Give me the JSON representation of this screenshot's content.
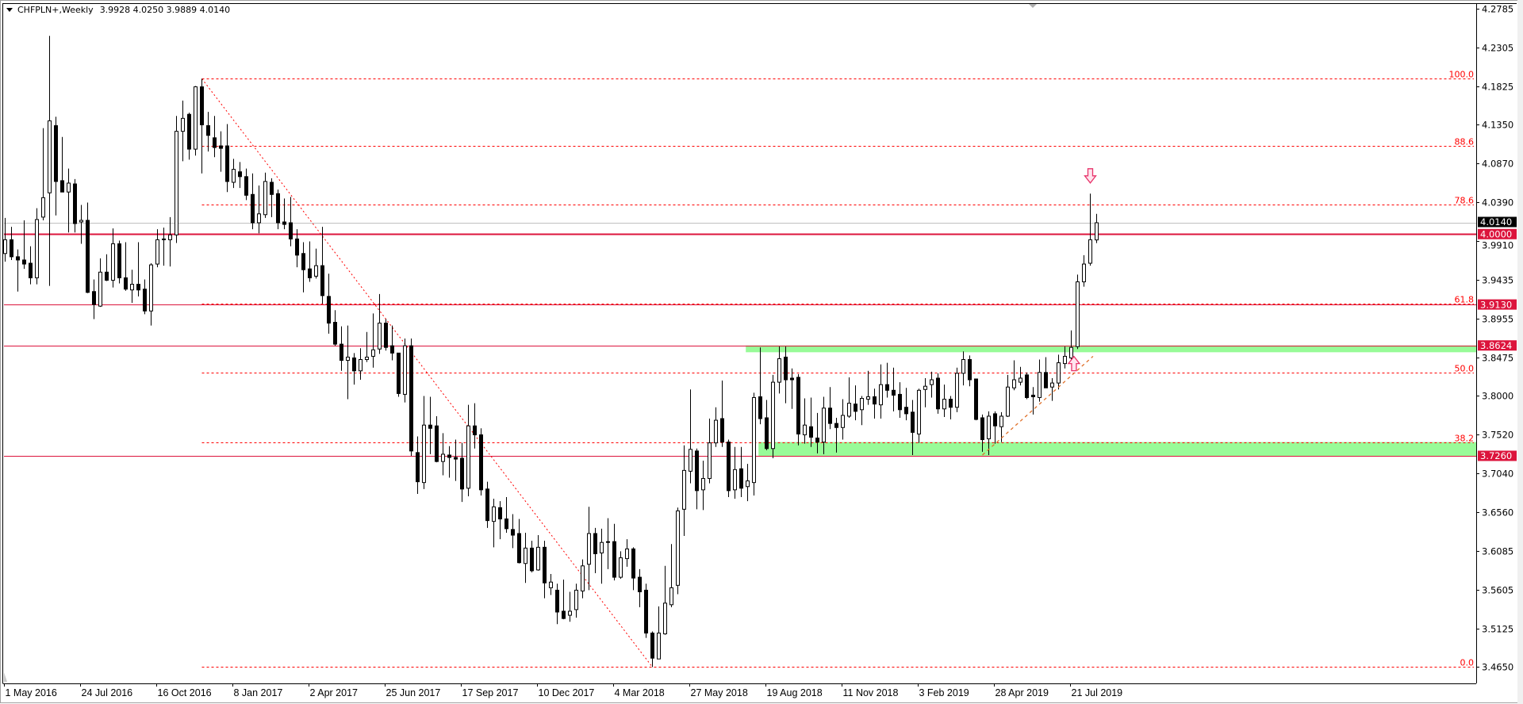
{
  "header": {
    "symbol_timeframe": "CHFPLN+,Weekly",
    "ohlc": "3.9928 4.0250 3.9889 4.0140"
  },
  "colors": {
    "background": "#ffffff",
    "candle_bear": "#000000",
    "candle_bull": "#ffffff",
    "candle_outline": "#000000",
    "level_line": "#dc143c",
    "fib_line": "#ff0000",
    "zone": "#98fb98",
    "current_price_line": "#c0c0c0",
    "current_price_box": "#000000",
    "trendline": "#e0702a",
    "arrow": "#e8336a"
  },
  "chart_data": {
    "type": "candlestick",
    "period": "Weekly",
    "first_bar": "2016-05-01",
    "ylim": [
      3.465,
      4.2785
    ],
    "y_tick_labels": [
      "4.2785",
      "4.2305",
      "4.1825",
      "4.1350",
      "4.0870",
      "4.0390",
      "3.9910",
      "3.9435",
      "3.8955",
      "3.8475",
      "3.8000",
      "3.7520",
      "3.7040",
      "3.6560",
      "3.6085",
      "3.5605",
      "3.5125",
      "3.4650"
    ],
    "x_tick_labels": [
      {
        "date": "2016-05-01",
        "label": "1 May 2016"
      },
      {
        "date": "2016-07-24",
        "label": "24 Jul 2016"
      },
      {
        "date": "2016-10-16",
        "label": "16 Oct 2016"
      },
      {
        "date": "2017-01-08",
        "label": "8 Jan 2017"
      },
      {
        "date": "2017-04-02",
        "label": "2 Apr 2017"
      },
      {
        "date": "2017-06-25",
        "label": "25 Jun 2017"
      },
      {
        "date": "2017-09-17",
        "label": "17 Sep 2017"
      },
      {
        "date": "2017-12-10",
        "label": "10 Dec 2017"
      },
      {
        "date": "2018-03-04",
        "label": "4 Mar 2018"
      },
      {
        "date": "2018-05-27",
        "label": "27 May 2018"
      },
      {
        "date": "2018-08-19",
        "label": "19 Aug 2018"
      },
      {
        "date": "2018-11-11",
        "label": "11 Nov 2018"
      },
      {
        "date": "2019-02-03",
        "label": "3 Feb 2019"
      },
      {
        "date": "2019-04-28",
        "label": "28 Apr 2019"
      },
      {
        "date": "2019-07-21",
        "label": "21 Jul 2019"
      }
    ],
    "candles_ohlc": [
      [
        3.976,
        4.02,
        3.966,
        3.993
      ],
      [
        3.993,
        4.009,
        3.968,
        3.972
      ],
      [
        3.972,
        3.981,
        3.929,
        3.968
      ],
      [
        3.968,
        4.017,
        3.957,
        3.963
      ],
      [
        3.964,
        3.985,
        3.938,
        3.946
      ],
      [
        3.946,
        4.032,
        3.938,
        4.018
      ],
      [
        4.021,
        4.131,
        4.017,
        4.045
      ],
      [
        4.051,
        4.245,
        3.936,
        4.14
      ],
      [
        4.134,
        4.145,
        4.023,
        4.065
      ],
      [
        4.066,
        4.12,
        4.052,
        4.052
      ],
      [
        4.052,
        4.081,
        4.002,
        4.063
      ],
      [
        4.062,
        4.068,
        4.002,
        4.013
      ],
      [
        4.015,
        4.036,
        3.988,
        4.017
      ],
      [
        4.017,
        4.039,
        3.927,
        3.928
      ],
      [
        3.929,
        3.944,
        3.895,
        3.913
      ],
      [
        3.911,
        3.97,
        3.91,
        3.953
      ],
      [
        3.953,
        3.975,
        3.942,
        3.943
      ],
      [
        3.943,
        4.007,
        3.934,
        3.988
      ],
      [
        3.988,
        3.992,
        3.939,
        3.946
      ],
      [
        3.946,
        3.99,
        3.93,
        3.932
      ],
      [
        3.931,
        3.956,
        3.915,
        3.938
      ],
      [
        3.938,
        3.99,
        3.923,
        3.931
      ],
      [
        3.932,
        3.944,
        3.901,
        3.905
      ],
      [
        3.905,
        3.964,
        3.887,
        3.962
      ],
      [
        3.963,
        4.006,
        3.959,
        3.993
      ],
      [
        3.993,
        4.008,
        3.961,
        3.994
      ],
      [
        3.993,
        4.021,
        3.96,
        3.999
      ],
      [
        3.999,
        4.146,
        3.989,
        4.127
      ],
      [
        4.127,
        4.165,
        4.09,
        4.143
      ],
      [
        4.148,
        4.15,
        4.092,
        4.105
      ],
      [
        4.105,
        4.183,
        4.097,
        4.182
      ],
      [
        4.182,
        4.192,
        4.075,
        4.135
      ],
      [
        4.134,
        4.151,
        4.102,
        4.122
      ],
      [
        4.119,
        4.146,
        4.095,
        4.107
      ],
      [
        4.109,
        4.127,
        4.077,
        4.106
      ],
      [
        4.109,
        4.136,
        4.052,
        4.065
      ],
      [
        4.064,
        4.093,
        4.057,
        4.08
      ],
      [
        4.077,
        4.089,
        4.057,
        4.071
      ],
      [
        4.071,
        4.081,
        4.042,
        4.048
      ],
      [
        4.049,
        4.075,
        4.006,
        4.014
      ],
      [
        4.014,
        4.06,
        4.001,
        4.025
      ],
      [
        4.024,
        4.076,
        4.02,
        4.065
      ],
      [
        4.064,
        4.069,
        4.021,
        4.049
      ],
      [
        4.05,
        4.055,
        4.006,
        4.014
      ],
      [
        4.015,
        4.044,
        4.006,
        4.012
      ],
      [
        4.014,
        4.046,
        3.985,
        3.994
      ],
      [
        3.994,
        4.006,
        3.959,
        3.974
      ],
      [
        3.976,
        3.99,
        3.928,
        3.956
      ],
      [
        3.957,
        3.991,
        3.941,
        3.946
      ],
      [
        3.948,
        3.982,
        3.945,
        3.961
      ],
      [
        3.961,
        4.009,
        3.914,
        3.924
      ],
      [
        3.923,
        3.951,
        3.877,
        3.89
      ],
      [
        3.891,
        3.906,
        3.862,
        3.864
      ],
      [
        3.864,
        3.886,
        3.831,
        3.844
      ],
      [
        3.844,
        3.887,
        3.796,
        3.848
      ],
      [
        3.847,
        3.853,
        3.814,
        3.831
      ],
      [
        3.831,
        3.859,
        3.82,
        3.845
      ],
      [
        3.845,
        3.879,
        3.842,
        3.848
      ],
      [
        3.849,
        3.902,
        3.835,
        3.857
      ],
      [
        3.858,
        3.926,
        3.852,
        3.89
      ],
      [
        3.89,
        3.895,
        3.856,
        3.86
      ],
      [
        3.862,
        3.887,
        3.844,
        3.853
      ],
      [
        3.853,
        3.853,
        3.799,
        3.803
      ],
      [
        3.802,
        3.871,
        3.792,
        3.862
      ],
      [
        3.862,
        3.871,
        3.726,
        3.732
      ],
      [
        3.73,
        3.75,
        3.679,
        3.694
      ],
      [
        3.693,
        3.8,
        3.685,
        3.764
      ],
      [
        3.764,
        3.799,
        3.728,
        3.76
      ],
      [
        3.763,
        3.775,
        3.718,
        3.719
      ],
      [
        3.719,
        3.754,
        3.702,
        3.728
      ],
      [
        3.727,
        3.738,
        3.699,
        3.724
      ],
      [
        3.724,
        3.746,
        3.695,
        3.722
      ],
      [
        3.723,
        3.742,
        3.669,
        3.685
      ],
      [
        3.686,
        3.789,
        3.676,
        3.763
      ],
      [
        3.763,
        3.791,
        3.735,
        3.752
      ],
      [
        3.752,
        3.76,
        3.677,
        3.684
      ],
      [
        3.685,
        3.694,
        3.637,
        3.646
      ],
      [
        3.645,
        3.673,
        3.613,
        3.663
      ],
      [
        3.662,
        3.67,
        3.623,
        3.648
      ],
      [
        3.648,
        3.675,
        3.631,
        3.636
      ],
      [
        3.635,
        3.654,
        3.612,
        3.628
      ],
      [
        3.63,
        3.648,
        3.593,
        3.594
      ],
      [
        3.593,
        3.631,
        3.569,
        3.612
      ],
      [
        3.612,
        3.621,
        3.582,
        3.584
      ],
      [
        3.585,
        3.628,
        3.584,
        3.613
      ],
      [
        3.613,
        3.621,
        3.55,
        3.569
      ],
      [
        3.563,
        3.58,
        3.554,
        3.57
      ],
      [
        3.56,
        3.568,
        3.518,
        3.533
      ],
      [
        3.534,
        3.573,
        3.524,
        3.525
      ],
      [
        3.529,
        3.558,
        3.521,
        3.534
      ],
      [
        3.536,
        3.568,
        3.526,
        3.56
      ],
      [
        3.559,
        3.598,
        3.55,
        3.59
      ],
      [
        3.592,
        3.663,
        3.56,
        3.63
      ],
      [
        3.63,
        3.637,
        3.581,
        3.605
      ],
      [
        3.606,
        3.636,
        3.568,
        3.619
      ],
      [
        3.62,
        3.649,
        3.586,
        3.619
      ],
      [
        3.62,
        3.642,
        3.572,
        3.576
      ],
      [
        3.576,
        3.608,
        3.574,
        3.6
      ],
      [
        3.599,
        3.623,
        3.589,
        3.611
      ],
      [
        3.611,
        3.613,
        3.56,
        3.575
      ],
      [
        3.576,
        3.586,
        3.539,
        3.558
      ],
      [
        3.56,
        3.568,
        3.501,
        3.507
      ],
      [
        3.507,
        3.509,
        3.465,
        3.476
      ],
      [
        3.475,
        3.54,
        3.475,
        3.507
      ],
      [
        3.506,
        3.59,
        3.505,
        3.544
      ],
      [
        3.542,
        3.617,
        3.539,
        3.563
      ],
      [
        3.566,
        3.662,
        3.555,
        3.658
      ],
      [
        3.66,
        3.739,
        3.627,
        3.708
      ],
      [
        3.707,
        3.808,
        3.692,
        3.734
      ],
      [
        3.732,
        3.735,
        3.66,
        3.683
      ],
      [
        3.684,
        3.72,
        3.659,
        3.698
      ],
      [
        3.698,
        3.772,
        3.692,
        3.742
      ],
      [
        3.742,
        3.786,
        3.737,
        3.77
      ],
      [
        3.772,
        3.819,
        3.737,
        3.743
      ],
      [
        3.743,
        3.746,
        3.675,
        3.683
      ],
      [
        3.684,
        3.737,
        3.673,
        3.709
      ],
      [
        3.71,
        3.737,
        3.675,
        3.686
      ],
      [
        3.688,
        3.716,
        3.67,
        3.695
      ],
      [
        3.693,
        3.804,
        3.677,
        3.798
      ],
      [
        3.799,
        3.86,
        3.765,
        3.772
      ],
      [
        3.773,
        3.795,
        3.733,
        3.735
      ],
      [
        3.735,
        3.826,
        3.723,
        3.817
      ],
      [
        3.817,
        3.861,
        3.803,
        3.846
      ],
      [
        3.848,
        3.861,
        3.791,
        3.82
      ],
      [
        3.822,
        3.834,
        3.784,
        3.82
      ],
      [
        3.823,
        3.827,
        3.739,
        3.753
      ],
      [
        3.752,
        3.797,
        3.741,
        3.764
      ],
      [
        3.762,
        3.798,
        3.737,
        3.749
      ],
      [
        3.748,
        3.779,
        3.729,
        3.743
      ],
      [
        3.743,
        3.799,
        3.728,
        3.785
      ],
      [
        3.785,
        3.811,
        3.759,
        3.766
      ],
      [
        3.766,
        3.773,
        3.73,
        3.761
      ],
      [
        3.761,
        3.796,
        3.746,
        3.776
      ],
      [
        3.775,
        3.823,
        3.773,
        3.791
      ],
      [
        3.79,
        3.813,
        3.77,
        3.781
      ],
      [
        3.783,
        3.8,
        3.764,
        3.797
      ],
      [
        3.796,
        3.831,
        3.789,
        3.799
      ],
      [
        3.799,
        3.809,
        3.772,
        3.79
      ],
      [
        3.789,
        3.839,
        3.772,
        3.814
      ],
      [
        3.814,
        3.841,
        3.798,
        3.807
      ],
      [
        3.807,
        3.835,
        3.781,
        3.801
      ],
      [
        3.802,
        3.817,
        3.773,
        3.783
      ],
      [
        3.786,
        3.81,
        3.77,
        3.778
      ],
      [
        3.78,
        3.795,
        3.727,
        3.755
      ],
      [
        3.753,
        3.809,
        3.742,
        3.807
      ],
      [
        3.808,
        3.822,
        3.786,
        3.812
      ],
      [
        3.814,
        3.83,
        3.798,
        3.82
      ],
      [
        3.822,
        3.828,
        3.778,
        3.784
      ],
      [
        3.784,
        3.814,
        3.774,
        3.796
      ],
      [
        3.796,
        3.8,
        3.771,
        3.786
      ],
      [
        3.786,
        3.835,
        3.78,
        3.828
      ],
      [
        3.828,
        3.855,
        3.813,
        3.845
      ],
      [
        3.845,
        3.85,
        3.812,
        3.82
      ],
      [
        3.821,
        3.821,
        3.77,
        3.771
      ],
      [
        3.773,
        3.777,
        3.731,
        3.746
      ],
      [
        3.747,
        3.781,
        3.727,
        3.775
      ],
      [
        3.778,
        3.781,
        3.741,
        3.763
      ],
      [
        3.762,
        3.78,
        3.743,
        3.775
      ],
      [
        3.775,
        3.826,
        3.774,
        3.811
      ],
      [
        3.81,
        3.844,
        3.807,
        3.82
      ],
      [
        3.817,
        3.836,
        3.813,
        3.822
      ],
      [
        3.826,
        3.829,
        3.796,
        3.798
      ],
      [
        3.801,
        3.811,
        3.777,
        3.799
      ],
      [
        3.798,
        3.845,
        3.793,
        3.829
      ],
      [
        3.829,
        3.848,
        3.81,
        3.81
      ],
      [
        3.811,
        3.822,
        3.794,
        3.816
      ],
      [
        3.816,
        3.851,
        3.808,
        3.841
      ],
      [
        3.84,
        3.861,
        3.834,
        3.849
      ],
      [
        3.847,
        3.881,
        3.844,
        3.86
      ],
      [
        3.861,
        3.95,
        3.858,
        3.941
      ],
      [
        3.941,
        3.974,
        3.935,
        3.963
      ],
      [
        3.964,
        4.05,
        3.961,
        3.993
      ],
      [
        3.9928,
        4.025,
        3.9889,
        4.014
      ]
    ],
    "current_price": {
      "value": 4.014,
      "label": "4.0140"
    },
    "levels": [
      {
        "price": 4.0,
        "label": "4.0000",
        "weight": "thick"
      },
      {
        "price": 3.913,
        "label": "3.9130",
        "weight": "thin"
      },
      {
        "price": 3.8624,
        "label": "3.8624",
        "weight": "thin"
      },
      {
        "price": 3.726,
        "label": "3.7260",
        "weight": "thin"
      }
    ],
    "zones": [
      {
        "from": 3.854,
        "to": 3.8624,
        "start": "2018-07-27"
      },
      {
        "from": 3.726,
        "to": 3.743,
        "start": "2018-08-10"
      }
    ],
    "fibonacci": {
      "high": {
        "date": "2016-12-04",
        "price": 4.192
      },
      "low": {
        "date": "2018-04-15",
        "price": 3.465
      },
      "levels": [
        {
          "ratio": 100.0,
          "label": "100.0"
        },
        {
          "ratio": 88.6,
          "label": "88.6"
        },
        {
          "ratio": 78.6,
          "label": "78.6"
        },
        {
          "ratio": 61.8,
          "label": "61.8"
        },
        {
          "ratio": 50.0,
          "label": "50.0"
        },
        {
          "ratio": 38.2,
          "label": "38.2"
        },
        {
          "ratio": 0.0,
          "label": "0.0"
        }
      ]
    },
    "trendline": {
      "from": {
        "date": "2019-04-14",
        "price": 3.727
      },
      "to": {
        "date": "2019-08-14",
        "price": 3.849
      },
      "style": "dashed"
    },
    "arrows": [
      {
        "direction": "down",
        "icon": "down-arrow-icon",
        "date": "2019-08-11",
        "price": 4.072
      },
      {
        "direction": "up",
        "icon": "up-arrow-icon",
        "date": "2019-07-24",
        "price": 3.84
      }
    ]
  }
}
